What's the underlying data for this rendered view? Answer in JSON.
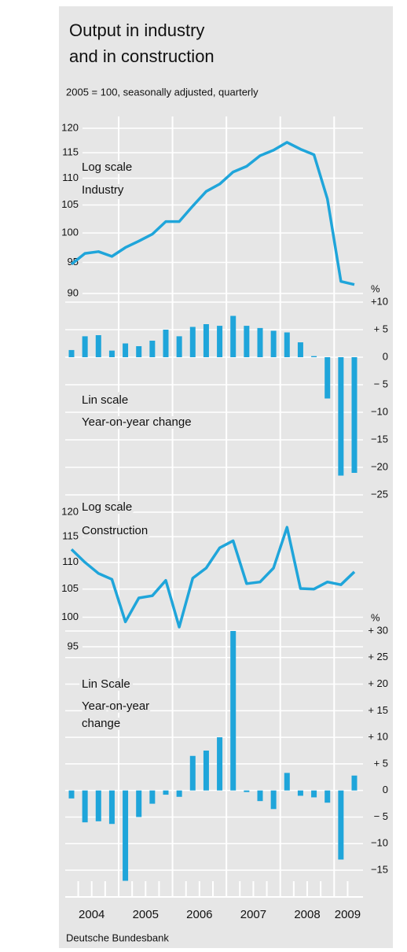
{
  "title_lines": [
    "Output in industry",
    "and in construction"
  ],
  "subtitle": "2005 = 100, seasonally adjusted, quarterly",
  "years": [
    "2004",
    "2005",
    "2006",
    "2007",
    "2008",
    "2009"
  ],
  "source": "Deutsche Bundesbank",
  "chart_data": [
    {
      "type": "line",
      "log_scale": true,
      "color": "#1fa5da",
      "annotations": [
        "Log scale",
        "Industry"
      ],
      "values": [
        94.7,
        96.5,
        96.8,
        96.0,
        97.5,
        98.6,
        99.8,
        102.0,
        102.0,
        104.8,
        107.5,
        108.9,
        111.2,
        112.3,
        114.4,
        115.5,
        117.1,
        115.7,
        114.6,
        106.1,
        91.9,
        91.4
      ],
      "ylim": [
        90,
        120
      ],
      "yticks": [
        90,
        95,
        100,
        105,
        110,
        115,
        120
      ]
    },
    {
      "type": "bar",
      "log_scale": false,
      "color": "#1fa5da",
      "unit": "%",
      "annotations": [
        "Lin scale",
        "Year-on-year change"
      ],
      "values": [
        1.3,
        3.8,
        4.0,
        1.2,
        2.5,
        2.0,
        3.0,
        5.0,
        3.8,
        5.5,
        6.0,
        5.7,
        7.5,
        5.7,
        5.3,
        4.8,
        4.5,
        2.7,
        0.2,
        -7.5,
        -21.5,
        -21.0
      ],
      "ylim": [
        -25,
        10
      ],
      "yticks": [
        {
          "value": 10,
          "label": "+10"
        },
        {
          "value": 5,
          "label": "+ 5"
        },
        0,
        {
          "value": -5,
          "label": "− 5"
        },
        {
          "value": -10,
          "label": "−10"
        },
        {
          "value": -15,
          "label": "−15"
        },
        {
          "value": -20,
          "label": "−20"
        },
        {
          "value": -25,
          "label": "−25"
        }
      ]
    },
    {
      "type": "line",
      "log_scale": true,
      "color": "#1fa5da",
      "annotations": [
        "Log scale",
        "Construction"
      ],
      "values": [
        112.5,
        110.0,
        107.9,
        106.8,
        99.2,
        103.4,
        103.8,
        106.6,
        98.3,
        107.0,
        108.9,
        112.8,
        114.2,
        106.0,
        106.3,
        108.9,
        116.9,
        105.1,
        105.0,
        106.3,
        105.8,
        108.2
      ],
      "ylim": [
        95,
        120
      ],
      "yticks": [
        95,
        100,
        105,
        110,
        115,
        120
      ]
    },
    {
      "type": "bar",
      "log_scale": false,
      "color": "#1fa5da",
      "unit": "%",
      "annotations": [
        "Lin Scale",
        "Year-on-year",
        "change"
      ],
      "values": [
        -1.5,
        -6.0,
        -5.8,
        -6.3,
        -17.0,
        -5.0,
        -2.5,
        -0.8,
        -1.2,
        6.5,
        7.5,
        10.0,
        30.0,
        -0.3,
        -2.0,
        -3.5,
        3.3,
        -1.0,
        -1.3,
        -2.3,
        -13.0,
        2.8
      ],
      "ylim": [
        -15,
        30
      ],
      "yticks": [
        {
          "value": 30,
          "label": "+ 30"
        },
        {
          "value": 25,
          "label": "+ 25"
        },
        {
          "value": 20,
          "label": "+ 20"
        },
        {
          "value": 15,
          "label": "+ 15"
        },
        {
          "value": 10,
          "label": "+ 10"
        },
        {
          "value": 5,
          "label": "+ 5"
        },
        0,
        {
          "value": -5,
          "label": "− 5"
        },
        {
          "value": -10,
          "label": "−10"
        },
        {
          "value": -15,
          "label": "−15"
        }
      ]
    }
  ]
}
